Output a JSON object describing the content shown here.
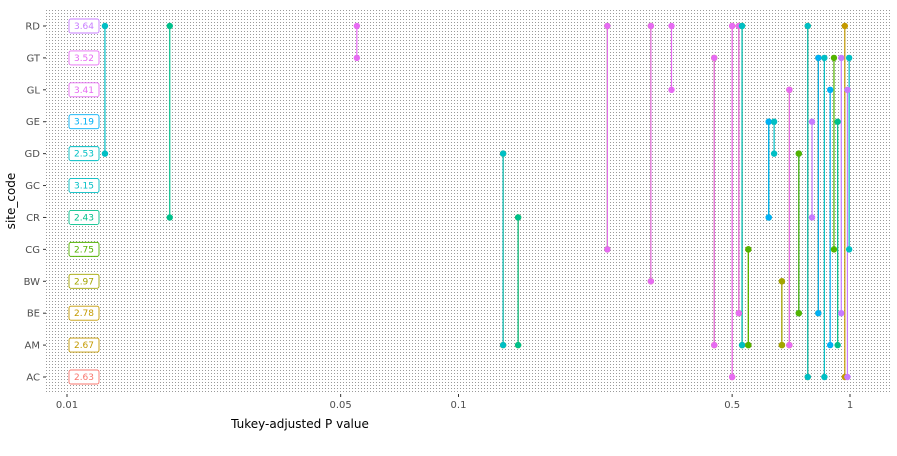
{
  "chart_data": {
    "type": "scatter",
    "xlabel": "Tukey-adjusted P value",
    "ylabel": "site_code",
    "x_scale": "log10",
    "xlim": [
      0.01,
      1
    ],
    "x_ticks": [
      {
        "value": 0.01,
        "label": "0.01"
      },
      {
        "value": 0.05,
        "label": "0.05"
      },
      {
        "value": 0.1,
        "label": "0.1"
      },
      {
        "value": 0.5,
        "label": "0.5"
      },
      {
        "value": 1,
        "label": "1"
      }
    ],
    "categories": [
      "AC",
      "AM",
      "BE",
      "BW",
      "CG",
      "CR",
      "GC",
      "GD",
      "GE",
      "GL",
      "GT",
      "RD"
    ],
    "site_means": [
      {
        "site": "RD",
        "label": "3.64",
        "color": "#c77cff"
      },
      {
        "site": "GT",
        "label": "3.52",
        "color": "#e76bf3"
      },
      {
        "site": "GL",
        "label": "3.41",
        "color": "#e76bf3"
      },
      {
        "site": "GE",
        "label": "3.19",
        "color": "#00b0f6"
      },
      {
        "site": "GD",
        "label": "2.53",
        "color": "#00bfc4"
      },
      {
        "site": "GC",
        "label": "3.15",
        "color": "#00bfc4"
      },
      {
        "site": "CR",
        "label": "2.43",
        "color": "#00c08b"
      },
      {
        "site": "CG",
        "label": "2.75",
        "color": "#53b400"
      },
      {
        "site": "BW",
        "label": "2.97",
        "color": "#a3a500"
      },
      {
        "site": "BE",
        "label": "2.78",
        "color": "#c49a00"
      },
      {
        "site": "AM",
        "label": "2.67",
        "color": "#c49a00"
      },
      {
        "site": "AC",
        "label": "2.63",
        "color": "#f8766d"
      }
    ],
    "segments": [
      {
        "x": 0.0125,
        "y_from": "GD",
        "y_to": "RD",
        "color": "#00bfc4"
      },
      {
        "x": 0.0183,
        "y_from": "CR",
        "y_to": "RD",
        "color": "#00c08b"
      },
      {
        "x": 0.055,
        "y_from": "GT",
        "y_to": "RD",
        "color": "#e76bf3"
      },
      {
        "x": 0.13,
        "y_from": "AM",
        "y_to": "GD",
        "color": "#c49a00"
      },
      {
        "x": 0.13,
        "y_from": "AM",
        "y_to": "GD",
        "color": "#00bfc4"
      },
      {
        "x": 0.142,
        "y_from": "AM",
        "y_to": "CR",
        "color": "#c49a00"
      },
      {
        "x": 0.142,
        "y_from": "AM",
        "y_to": "CR",
        "color": "#00c08b"
      },
      {
        "x": 0.24,
        "y_from": "CG",
        "y_to": "RD",
        "color": "#53b400"
      },
      {
        "x": 0.24,
        "y_from": "CG",
        "y_to": "RD",
        "color": "#e76bf3"
      },
      {
        "x": 0.31,
        "y_from": "BW",
        "y_to": "RD",
        "color": "#a3a500"
      },
      {
        "x": 0.31,
        "y_from": "BW",
        "y_to": "RD",
        "color": "#e76bf3"
      },
      {
        "x": 0.35,
        "y_from": "GL",
        "y_to": "RD",
        "color": "#e76bf3"
      },
      {
        "x": 0.45,
        "y_from": "AM",
        "y_to": "GT",
        "color": "#c49a00"
      },
      {
        "x": 0.45,
        "y_from": "AM",
        "y_to": "GT",
        "color": "#e76bf3"
      },
      {
        "x": 0.5,
        "y_from": "AC",
        "y_to": "RD",
        "color": "#f8766d"
      },
      {
        "x": 0.5,
        "y_from": "AC",
        "y_to": "RD",
        "color": "#e76bf3"
      },
      {
        "x": 0.52,
        "y_from": "BE",
        "y_to": "RD",
        "color": "#c49a00"
      },
      {
        "x": 0.52,
        "y_from": "BE",
        "y_to": "RD",
        "color": "#e76bf3"
      },
      {
        "x": 0.53,
        "y_from": "AM",
        "y_to": "RD",
        "color": "#53b400"
      },
      {
        "x": 0.53,
        "y_from": "AM",
        "y_to": "RD",
        "color": "#00bfc4"
      },
      {
        "x": 0.55,
        "y_from": "AM",
        "y_to": "CG",
        "color": "#c49a00"
      },
      {
        "x": 0.55,
        "y_from": "AM",
        "y_to": "CG",
        "color": "#53b400"
      },
      {
        "x": 0.62,
        "y_from": "CR",
        "y_to": "GE",
        "color": "#00c08b"
      },
      {
        "x": 0.62,
        "y_from": "CR",
        "y_to": "GE",
        "color": "#00b0f6"
      },
      {
        "x": 0.64,
        "y_from": "GD",
        "y_to": "GE",
        "color": "#00bfc4"
      },
      {
        "x": 0.67,
        "y_from": "AM",
        "y_to": "BW",
        "color": "#c49a00"
      },
      {
        "x": 0.67,
        "y_from": "AM",
        "y_to": "BW",
        "color": "#a3a500"
      },
      {
        "x": 0.7,
        "y_from": "AM",
        "y_to": "GL",
        "color": "#c49a00"
      },
      {
        "x": 0.7,
        "y_from": "AM",
        "y_to": "GL",
        "color": "#e76bf3"
      },
      {
        "x": 0.74,
        "y_from": "BE",
        "y_to": "GD",
        "color": "#00bfc4"
      },
      {
        "x": 0.74,
        "y_from": "BE",
        "y_to": "GD",
        "color": "#53b400"
      },
      {
        "x": 0.78,
        "y_from": "AC",
        "y_to": "RD",
        "color": "#c49a00"
      },
      {
        "x": 0.78,
        "y_from": "AC",
        "y_to": "RD",
        "color": "#00bfc4"
      },
      {
        "x": 0.8,
        "y_from": "CR",
        "y_to": "GE",
        "color": "#c77cff"
      },
      {
        "x": 0.83,
        "y_from": "BE",
        "y_to": "GT",
        "color": "#c49a00"
      },
      {
        "x": 0.83,
        "y_from": "BE",
        "y_to": "GT",
        "color": "#00b0f6"
      },
      {
        "x": 0.86,
        "y_from": "AC",
        "y_to": "GT",
        "color": "#00bfc4"
      },
      {
        "x": 0.89,
        "y_from": "AM",
        "y_to": "GL",
        "color": "#00b0f6"
      },
      {
        "x": 0.91,
        "y_from": "CG",
        "y_to": "GT",
        "color": "#53b400"
      },
      {
        "x": 0.93,
        "y_from": "AM",
        "y_to": "GE",
        "color": "#00c08b"
      },
      {
        "x": 0.95,
        "y_from": "BE",
        "y_to": "GT",
        "color": "#c77cff"
      },
      {
        "x": 0.97,
        "y_from": "AC",
        "y_to": "RD",
        "color": "#c49a00"
      },
      {
        "x": 0.985,
        "y_from": "AC",
        "y_to": "GL",
        "color": "#c77cff"
      },
      {
        "x": 0.995,
        "y_from": "CG",
        "y_to": "GT",
        "color": "#00bfc4"
      }
    ],
    "grid": false,
    "legend": "none",
    "background": "dotted"
  }
}
